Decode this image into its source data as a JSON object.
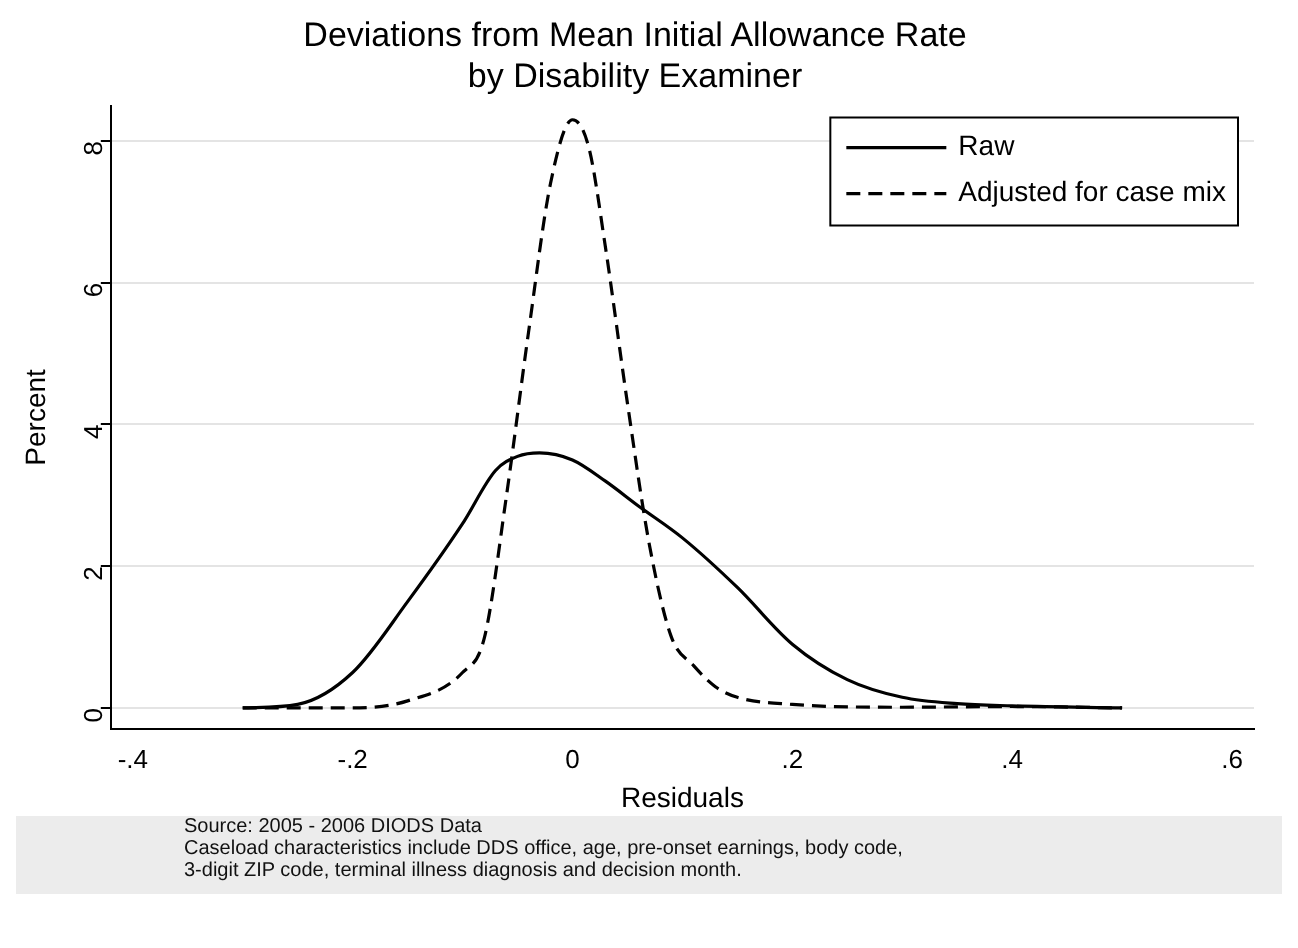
{
  "chart_data": {
    "type": "line",
    "title": "Deviations from Mean Initial Allowance Rate\nby Disability Examiner",
    "xlabel": "Residuals",
    "ylabel": "Percent",
    "annotations": [
      "Source: 2005 - 2006 DIODS Data",
      "Caseload characteristics include DDS office, age, pre-onset earnings, body code,\n3-digit ZIP code, terminal illness diagnosis and decision month."
    ],
    "series": [
      {
        "name": "Raw",
        "color": "#000000",
        "line_style": "solid",
        "x": [
          -0.3,
          -0.25,
          -0.2,
          -0.15,
          -0.1,
          -0.07,
          -0.05,
          -0.03,
          0,
          0.03,
          0.06,
          0.1,
          0.15,
          0.2,
          0.25,
          0.3,
          0.35,
          0.4,
          0.5
        ],
        "values": [
          0,
          0.05,
          0.5,
          1.5,
          2.6,
          3.35,
          3.55,
          3.6,
          3.5,
          3.2,
          2.85,
          2.4,
          1.7,
          0.9,
          0.4,
          0.15,
          0.06,
          0.03,
          0
        ]
      },
      {
        "name": "Adjusted for case mix",
        "color": "#000000",
        "line_style": "dashed",
        "x": [
          -0.3,
          -0.2,
          -0.15,
          -0.1,
          -0.08,
          -0.06,
          -0.04,
          -0.02,
          0,
          0.015,
          0.03,
          0.05,
          0.07,
          0.09,
          0.11,
          0.13,
          0.15,
          0.2,
          0.3,
          0.4,
          0.5
        ],
        "values": [
          0,
          0,
          0.1,
          0.5,
          1,
          3,
          5.3,
          7.4,
          8.3,
          7.9,
          6.5,
          4.3,
          2.3,
          1,
          0.6,
          0.3,
          0.15,
          0.05,
          0.01,
          0.02,
          0
        ]
      }
    ],
    "xlim": [
      -0.42,
      0.62
    ],
    "ylim": [
      -0.3,
      8.5
    ],
    "xticks": [
      {
        "value": -0.4,
        "label": "-.4"
      },
      {
        "value": -0.2,
        "label": "-.2"
      },
      0,
      {
        "value": 0.2,
        "label": ".2"
      },
      {
        "value": 0.4,
        "label": ".4"
      },
      {
        "value": 0.6,
        "label": ".6"
      }
    ],
    "yticks": [
      0,
      2,
      4,
      6,
      8
    ],
    "grid": "y",
    "legend": "top right",
    "marker": "none"
  }
}
